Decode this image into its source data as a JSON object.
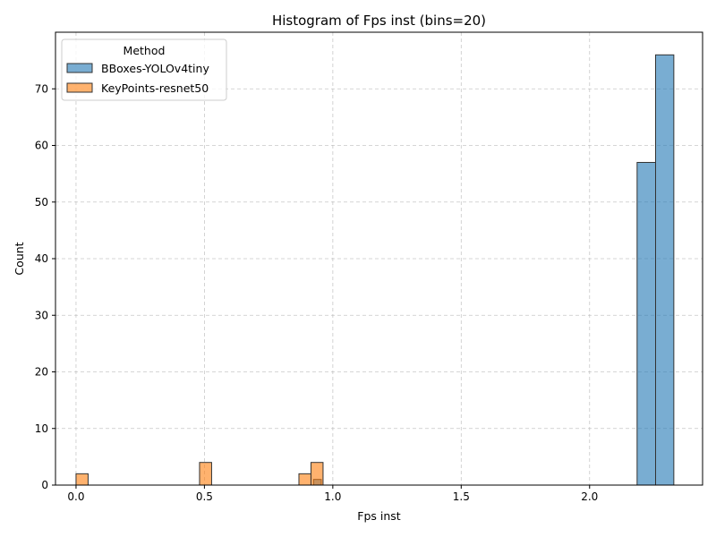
{
  "chart_data": {
    "type": "bar",
    "title": "Histogram of Fps inst (bins=20)",
    "xlabel": "Fps inst",
    "ylabel": "Count",
    "xlim": [
      -0.08,
      2.44
    ],
    "ylim": [
      0,
      80
    ],
    "xticks": [
      0.0,
      0.5,
      1.0,
      1.5,
      2.0
    ],
    "xtick_labels": [
      "0.0",
      "0.5",
      "1.0",
      "1.5",
      "2.0"
    ],
    "yticks": [
      0,
      10,
      20,
      30,
      40,
      50,
      60,
      70
    ],
    "ytick_labels": [
      "0",
      "10",
      "20",
      "30",
      "40",
      "50",
      "60",
      "70"
    ],
    "grid": true,
    "legend": {
      "title": "Method",
      "placement": "top-left"
    },
    "series": [
      {
        "name": "BBoxes-YOLOv4tiny",
        "color": "#1f77b4",
        "bins": [
          {
            "x0": 0.905,
            "x1": 0.925,
            "count": 0
          },
          {
            "x0": 0.925,
            "x1": 0.955,
            "count": 1
          },
          {
            "x0": 0.955,
            "x1": 2.185,
            "count": 0
          },
          {
            "x0": 2.185,
            "x1": 2.257,
            "count": 57
          },
          {
            "x0": 2.257,
            "x1": 2.328,
            "count": 76
          }
        ]
      },
      {
        "name": "KeyPoints-resnet50",
        "color": "#ff7f0e",
        "bins": [
          {
            "x0": 0.0,
            "x1": 0.047,
            "count": 2
          },
          {
            "x0": 0.047,
            "x1": 0.481,
            "count": 0
          },
          {
            "x0": 0.481,
            "x1": 0.528,
            "count": 4
          },
          {
            "x0": 0.528,
            "x1": 0.868,
            "count": 0
          },
          {
            "x0": 0.868,
            "x1": 0.915,
            "count": 2
          },
          {
            "x0": 0.915,
            "x1": 0.962,
            "count": 4
          }
        ]
      }
    ]
  }
}
